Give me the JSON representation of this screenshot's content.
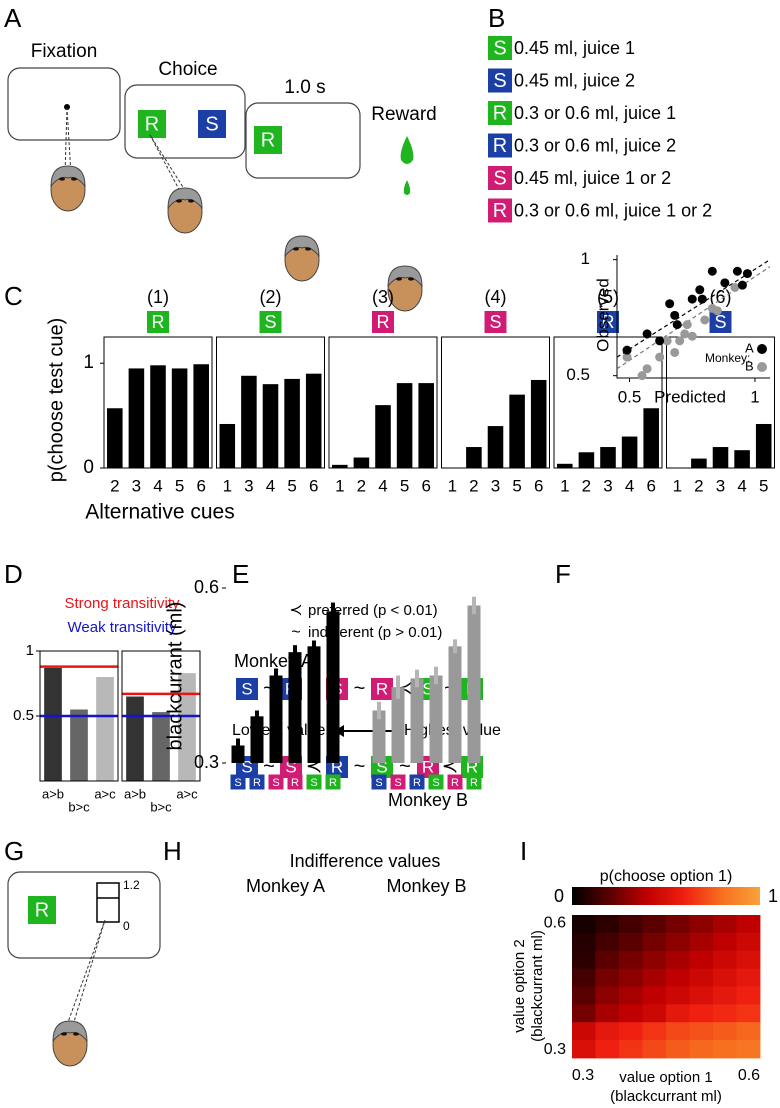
{
  "panel_labels": [
    "A",
    "B",
    "C",
    "D",
    "E",
    "F",
    "G",
    "H",
    "I"
  ],
  "panel_a": {
    "stages": [
      "Fixation",
      "Choice",
      "1.0 s",
      "Reward"
    ],
    "cues": [
      {
        "letter": "R",
        "color": "#1fb51f"
      },
      {
        "letter": "S",
        "color": "#1c3fa5"
      },
      {
        "letter": "R",
        "color": "#1fb51f"
      }
    ]
  },
  "panel_b": {
    "items": [
      {
        "letter": "S",
        "color": "#1fb51f",
        "text": "0.45 ml, juice 1"
      },
      {
        "letter": "S",
        "color": "#1c3fa5",
        "text": "0.45 ml, juice 2"
      },
      {
        "letter": "R",
        "color": "#1fb51f",
        "text": "0.3 or 0.6 ml, juice 1"
      },
      {
        "letter": "R",
        "color": "#1c3fa5",
        "text": "0.3 or 0.6 ml, juice 2"
      },
      {
        "letter": "S",
        "color": "#d01c72",
        "text": "0.45 ml, juice 1 or 2"
      },
      {
        "letter": "R",
        "color": "#d01c72",
        "text": "0.3 or 0.6 ml, juice 1 or 2"
      }
    ]
  },
  "panel_d_legend": [
    {
      "text": "Strong transitivity",
      "color": "#e8141a"
    },
    {
      "text": "Weak transitivity",
      "color": "#1414d0"
    }
  ],
  "panel_e": {
    "legend": [
      {
        "symbol": "≺",
        "text": "preferred (p < 0.01)"
      },
      {
        "symbol": "~",
        "text": "indifferent (p > 0.01)"
      }
    ],
    "monkey_a": "Monkey  A",
    "monkey_b": "Monkey  B",
    "lowest": "Lowest value",
    "highest": "Highest value",
    "sequence_a": {
      "cues": [
        {
          "letter": "S",
          "color": "#1c3fa5"
        },
        {
          "letter": "R",
          "color": "#1c3fa5"
        },
        {
          "letter": "S",
          "color": "#d01c72"
        },
        {
          "letter": "R",
          "color": "#d01c72"
        },
        {
          "letter": "S",
          "color": "#1fb51f"
        },
        {
          "letter": "R",
          "color": "#1fb51f"
        }
      ],
      "relations": [
        "~",
        "≺",
        "~",
        "≺",
        "~"
      ]
    },
    "sequence_b": {
      "cues": [
        {
          "letter": "S",
          "color": "#1c3fa5"
        },
        {
          "letter": "S",
          "color": "#d01c72"
        },
        {
          "letter": "R",
          "color": "#1c3fa5"
        },
        {
          "letter": "S",
          "color": "#1fb51f"
        },
        {
          "letter": "R",
          "color": "#d01c72"
        },
        {
          "letter": "R",
          "color": "#1fb51f"
        }
      ],
      "relations": [
        "~",
        "≺",
        "~",
        "~",
        "≺"
      ]
    }
  },
  "panel_g": {
    "cue": {
      "letter": "R",
      "color": "#1fb51f"
    },
    "scale_max": 1.2,
    "scale_min": 0
  },
  "chart_data": [
    {
      "type": "bar",
      "title": "(1)",
      "cue": {
        "letter": "R",
        "color": "#1fb51f"
      },
      "categories": [
        "2",
        "3",
        "4",
        "5",
        "6"
      ],
      "values": [
        0.57,
        0.95,
        0.98,
        0.95,
        0.99
      ],
      "color": "#000000",
      "ylim": [
        0,
        1.25
      ],
      "yticks": [
        0,
        1
      ],
      "ylabel": "p(choose test cue)",
      "xlabel": "Alternative cues"
    },
    {
      "type": "bar",
      "title": "(2)",
      "cue": {
        "letter": "S",
        "color": "#1fb51f"
      },
      "categories": [
        "1",
        "3",
        "4",
        "5",
        "6"
      ],
      "values": [
        0.42,
        0.88,
        0.8,
        0.85,
        0.9
      ],
      "color": "#000000",
      "ylim": [
        0,
        1.25
      ]
    },
    {
      "type": "bar",
      "title": "(3)",
      "cue": {
        "letter": "R",
        "color": "#d01c72"
      },
      "categories": [
        "1",
        "2",
        "4",
        "5",
        "6"
      ],
      "values": [
        0.03,
        0.1,
        0.6,
        0.81,
        0.81
      ],
      "color": "#000000",
      "ylim": [
        0,
        1.25
      ]
    },
    {
      "type": "bar",
      "title": "(4)",
      "cue": {
        "letter": "S",
        "color": "#d01c72"
      },
      "categories": [
        "1",
        "2",
        "3",
        "5",
        "6"
      ],
      "values": [
        0,
        0.2,
        0.4,
        0.7,
        0.84
      ],
      "color": "#000000",
      "ylim": [
        0,
        1.25
      ]
    },
    {
      "type": "bar",
      "title": "(5)",
      "cue": {
        "letter": "R",
        "color": "#1c3fa5"
      },
      "categories": [
        "1",
        "2",
        "3",
        "4",
        "6"
      ],
      "values": [
        0.04,
        0.15,
        0.2,
        0.3,
        0.57
      ],
      "color": "#000000",
      "ylim": [
        0,
        1.25
      ]
    },
    {
      "type": "bar",
      "title": "(6)",
      "cue": {
        "letter": "S",
        "color": "#1c3fa5"
      },
      "categories": [
        "1",
        "2",
        "3",
        "4",
        "5"
      ],
      "values": [
        0,
        0.09,
        0.2,
        0.17,
        0.42
      ],
      "color": "#000000",
      "ylim": [
        0,
        1.25
      ]
    },
    {
      "type": "bar",
      "categories": [
        "a>b",
        "b>c",
        "a>c"
      ],
      "values": [
        0.87,
        0.55,
        0.8
      ],
      "colors": [
        "#333333",
        "#666666",
        "#b8b8b8"
      ],
      "ylim": [
        0,
        1
      ],
      "yticks": [
        0.5,
        1
      ],
      "lines": [
        {
          "value": 0.88,
          "color": "#e8141a"
        },
        {
          "value": 0.5,
          "color": "#1414d0"
        }
      ]
    },
    {
      "type": "bar",
      "categories": [
        "a>b",
        "b>c",
        "a>c"
      ],
      "values": [
        0.65,
        0.53,
        0.83
      ],
      "colors": [
        "#333333",
        "#666666",
        "#b8b8b8"
      ],
      "ylim": [
        0,
        1
      ],
      "lines": [
        {
          "value": 0.67,
          "color": "#e8141a"
        },
        {
          "value": 0.5,
          "color": "#1414d0"
        }
      ]
    },
    {
      "type": "scatter",
      "xlabel": "Predicted",
      "ylabel": "Observed",
      "xlim": [
        0.45,
        1.06
      ],
      "ylim": [
        0.49,
        1.02
      ],
      "xticks": [
        0.5,
        1
      ],
      "yticks": [
        0.5,
        1
      ],
      "legend_title": "Monkey:",
      "series": [
        {
          "name": "A",
          "color": "#000000",
          "x": [
            0.49,
            0.57,
            0.62,
            0.66,
            0.68,
            0.69,
            0.75,
            0.78,
            0.79,
            0.83,
            0.88,
            0.93,
            0.95,
            0.97
          ],
          "y": [
            0.61,
            0.68,
            0.65,
            0.81,
            0.76,
            0.72,
            0.83,
            0.87,
            0.83,
            0.95,
            0.9,
            0.95,
            0.89,
            0.94
          ]
        },
        {
          "name": "B",
          "color": "#999999",
          "x": [
            0.49,
            0.55,
            0.57,
            0.62,
            0.65,
            0.68,
            0.7,
            0.72,
            0.73,
            0.75,
            0.8,
            0.83,
            0.85,
            0.92
          ],
          "y": [
            0.58,
            0.5,
            0.53,
            0.58,
            0.65,
            0.6,
            0.65,
            0.68,
            0.72,
            0.67,
            0.74,
            0.79,
            0.78,
            0.88
          ]
        }
      ],
      "fit_lines": [
        {
          "color": "#000000",
          "x": [
            0.45,
            1.06
          ],
          "y": [
            0.58,
            1.0
          ]
        },
        {
          "color": "#777777",
          "x": [
            0.45,
            1.06
          ],
          "y": [
            0.53,
            0.97
          ]
        }
      ]
    },
    {
      "type": "grouped_bar",
      "title": "Indifference values",
      "ylabel": "blackcurrant (ml)",
      "ylim": [
        0.3,
        0.6
      ],
      "yticks": [
        0.3,
        0.6
      ],
      "groups": [
        {
          "name": "Monkey A",
          "color": "#000000",
          "error_color": "#000000",
          "categories": [
            "S",
            "R",
            "S",
            "R",
            "S",
            "R"
          ],
          "category_colors": [
            "#1c3fa5",
            "#1c3fa5",
            "#d01c72",
            "#d01c72",
            "#1fb51f",
            "#1fb51f"
          ],
          "values": [
            0.33,
            0.38,
            0.45,
            0.49,
            0.5,
            0.56
          ],
          "errors": [
            0.012,
            0.01,
            0.012,
            0.012,
            0.01,
            0.015
          ]
        },
        {
          "name": "Monkey B",
          "color": "#999999",
          "error_color": "#b5b5b5",
          "categories": [
            "S",
            "S",
            "R",
            "S",
            "R",
            "R"
          ],
          "category_colors": [
            "#1c3fa5",
            "#d01c72",
            "#1c3fa5",
            "#1fb51f",
            "#d01c72",
            "#1fb51f"
          ],
          "values": [
            0.39,
            0.43,
            0.445,
            0.45,
            0.5,
            0.57
          ],
          "errors": [
            0.015,
            0.02,
            0.015,
            0.015,
            0.012,
            0.015
          ]
        }
      ]
    },
    {
      "type": "heatmap",
      "xlim": [
        0.28,
        0.62
      ],
      "ylim": [
        0.28,
        0.62
      ],
      "xticks": [
        0.3,
        0.6
      ],
      "yticks": [
        0.3,
        0.6
      ],
      "xlabel": [
        "value option 1",
        "(blackcurrant ml)"
      ],
      "ylabel": [
        "value option 2",
        "(blackcurrant ml)"
      ],
      "values": [
        [
          0.05,
          0.1,
          0.15,
          0.2,
          0.25,
          0.3,
          0.35,
          0.4
        ],
        [
          0.08,
          0.15,
          0.2,
          0.25,
          0.3,
          0.35,
          0.4,
          0.45
        ],
        [
          0.1,
          0.2,
          0.25,
          0.3,
          0.35,
          0.4,
          0.45,
          0.5
        ],
        [
          0.15,
          0.25,
          0.3,
          0.35,
          0.4,
          0.45,
          0.5,
          0.55
        ],
        [
          0.2,
          0.3,
          0.35,
          0.4,
          0.45,
          0.5,
          0.55,
          0.6
        ],
        [
          0.25,
          0.35,
          0.4,
          0.45,
          0.55,
          0.6,
          0.62,
          0.65
        ],
        [
          0.45,
          0.55,
          0.6,
          0.65,
          0.7,
          0.72,
          0.75,
          0.78
        ],
        [
          0.5,
          0.6,
          0.65,
          0.7,
          0.75,
          0.78,
          0.8,
          0.82
        ]
      ],
      "colorbar": {
        "title": "p(choose option 1)",
        "lim": [
          0,
          1
        ],
        "ticks": [
          0,
          1
        ],
        "colors": [
          "#000000",
          "#5a0000",
          "#c00000",
          "#f02010",
          "#f77020",
          "#f9a23a"
        ]
      }
    }
  ]
}
